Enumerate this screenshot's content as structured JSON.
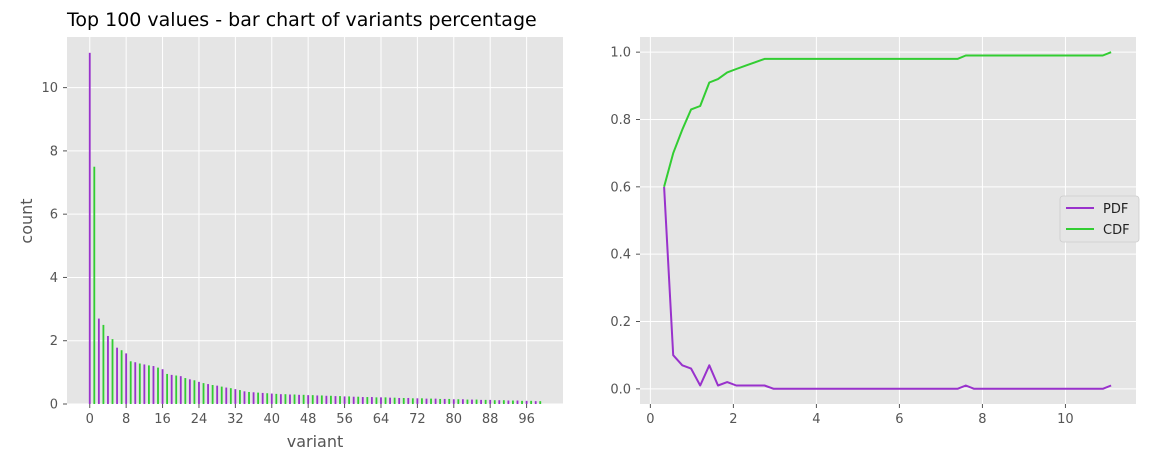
{
  "colors": {
    "primary": "#9932CC",
    "secondary": "#32CD32",
    "panel_bg": "#E5E5E5",
    "grid": "#FFFFFF"
  },
  "chart_data": [
    {
      "type": "bar",
      "title": "Top 100 values - bar chart of variants percentage",
      "xlabel": "variant",
      "ylabel": "count",
      "xlim": [
        -5,
        104
      ],
      "ylim": [
        0,
        11.6
      ],
      "xticks": [
        "0",
        "8",
        "16",
        "24",
        "32",
        "40",
        "48",
        "56",
        "64",
        "72",
        "80",
        "88",
        "96"
      ],
      "yticks": [
        "0",
        "2",
        "4",
        "6",
        "8",
        "10"
      ],
      "grid": true,
      "bar_colors": [
        "#9932CC",
        "#32CD32"
      ],
      "categories": [
        0,
        1,
        2,
        3,
        4,
        5,
        6,
        7,
        8,
        9,
        10,
        11,
        12,
        13,
        14,
        15,
        16,
        17,
        18,
        19,
        20,
        21,
        22,
        23,
        24,
        25,
        26,
        27,
        28,
        29,
        30,
        31,
        32,
        33,
        34,
        35,
        36,
        37,
        38,
        39,
        40,
        41,
        42,
        43,
        44,
        45,
        46,
        47,
        48,
        49,
        50,
        51,
        52,
        53,
        54,
        55,
        56,
        57,
        58,
        59,
        60,
        61,
        62,
        63,
        64,
        65,
        66,
        67,
        68,
        69,
        70,
        71,
        72,
        73,
        74,
        75,
        76,
        77,
        78,
        79,
        80,
        81,
        82,
        83,
        84,
        85,
        86,
        87,
        88,
        89,
        90,
        91,
        92,
        93,
        94,
        95,
        96,
        97,
        98,
        99
      ],
      "values": [
        11.1,
        7.5,
        2.7,
        2.5,
        2.15,
        2.05,
        1.78,
        1.7,
        1.6,
        1.35,
        1.32,
        1.28,
        1.25,
        1.22,
        1.2,
        1.15,
        1.1,
        0.95,
        0.92,
        0.9,
        0.88,
        0.82,
        0.78,
        0.75,
        0.7,
        0.66,
        0.63,
        0.6,
        0.58,
        0.55,
        0.52,
        0.5,
        0.47,
        0.44,
        0.4,
        0.38,
        0.37,
        0.36,
        0.35,
        0.34,
        0.33,
        0.32,
        0.31,
        0.31,
        0.3,
        0.3,
        0.29,
        0.29,
        0.28,
        0.28,
        0.27,
        0.27,
        0.26,
        0.26,
        0.25,
        0.25,
        0.24,
        0.24,
        0.23,
        0.23,
        0.22,
        0.22,
        0.22,
        0.21,
        0.21,
        0.21,
        0.2,
        0.2,
        0.19,
        0.19,
        0.19,
        0.18,
        0.18,
        0.18,
        0.17,
        0.17,
        0.17,
        0.16,
        0.16,
        0.16,
        0.15,
        0.15,
        0.15,
        0.14,
        0.14,
        0.14,
        0.13,
        0.13,
        0.13,
        0.12,
        0.12,
        0.12,
        0.11,
        0.11,
        0.11,
        0.1,
        0.1,
        0.1,
        0.09,
        0.09
      ]
    },
    {
      "type": "line",
      "title": "",
      "xlabel": "",
      "ylabel": "",
      "xlim": [
        -0.25,
        11.7
      ],
      "ylim": [
        -0.045,
        1.045
      ],
      "xticks": [
        "0",
        "2",
        "4",
        "6",
        "8",
        "10"
      ],
      "yticks": [
        "0.0",
        "0.2",
        "0.4",
        "0.6",
        "0.8",
        "1.0"
      ],
      "grid": true,
      "legend_position": "center-right",
      "series": [
        {
          "name": "PDF",
          "color": "#9932CC",
          "x": [
            0.33,
            0.55,
            0.77,
            0.98,
            1.2,
            1.42,
            1.63,
            1.85,
            2.07,
            2.3,
            2.52,
            2.75,
            2.97,
            3.2,
            3.5,
            4.0,
            5.0,
            6.0,
            7.0,
            7.4,
            7.6,
            7.8,
            8.0,
            9.0,
            10.0,
            10.9,
            11.1
          ],
          "y": [
            0.6,
            0.1,
            0.07,
            0.06,
            0.01,
            0.07,
            0.01,
            0.02,
            0.01,
            0.01,
            0.01,
            0.01,
            0.0,
            0.0,
            0.0,
            0.0,
            0.0,
            0.0,
            0.0,
            0.0,
            0.01,
            0.0,
            0.0,
            0.0,
            0.0,
            0.0,
            0.01
          ]
        },
        {
          "name": "CDF",
          "color": "#32CD32",
          "x": [
            0.33,
            0.55,
            0.77,
            0.98,
            1.2,
            1.42,
            1.63,
            1.85,
            2.07,
            2.3,
            2.52,
            2.75,
            2.97,
            3.2,
            4.0,
            5.0,
            6.0,
            7.0,
            7.4,
            7.6,
            8.0,
            9.0,
            10.0,
            10.9,
            11.1
          ],
          "y": [
            0.6,
            0.7,
            0.77,
            0.83,
            0.84,
            0.91,
            0.92,
            0.94,
            0.95,
            0.96,
            0.97,
            0.98,
            0.98,
            0.98,
            0.98,
            0.98,
            0.98,
            0.98,
            0.98,
            0.99,
            0.99,
            0.99,
            0.99,
            0.99,
            1.0
          ]
        }
      ]
    }
  ]
}
